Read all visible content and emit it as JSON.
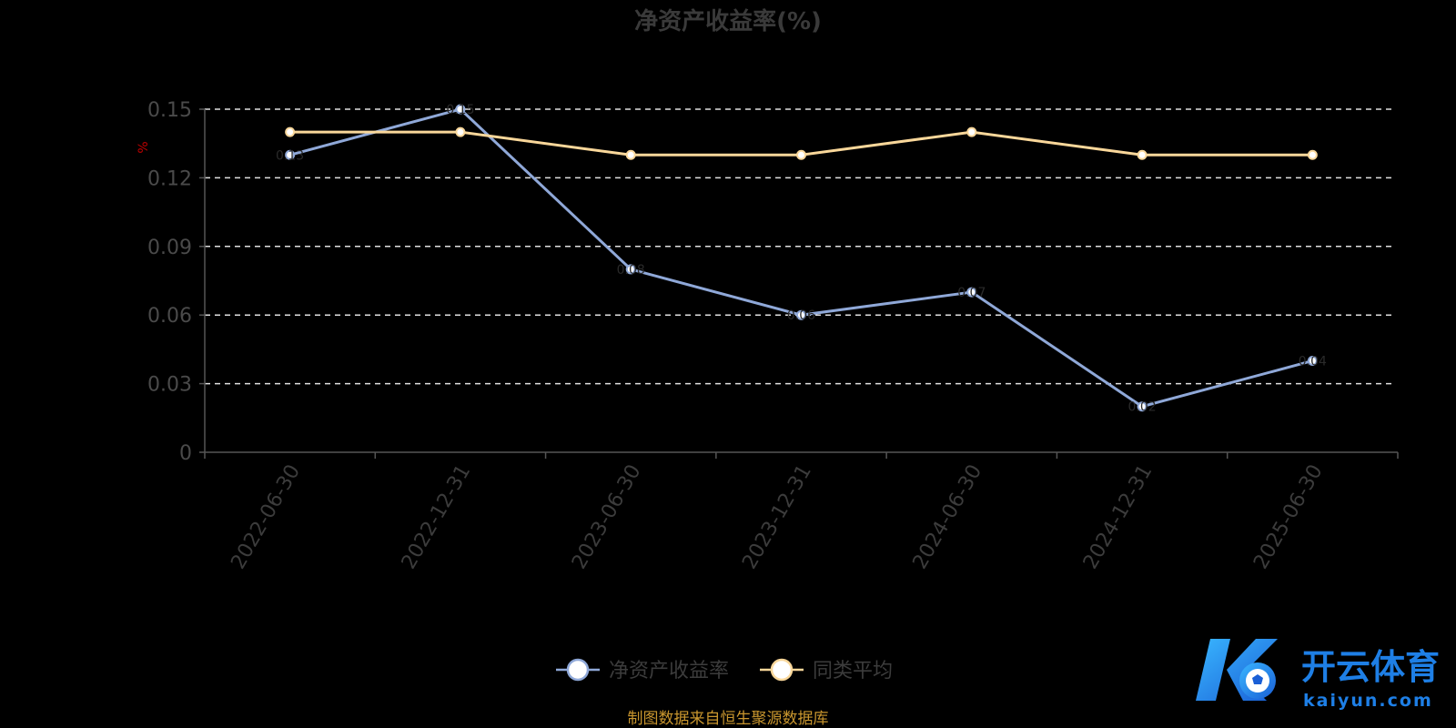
{
  "chart_data": {
    "type": "line",
    "title": "净资产收益率(%)",
    "ylabel": "%",
    "categories": [
      "2022-06-30",
      "2022-12-31",
      "2023-06-30",
      "2023-12-31",
      "2024-06-30",
      "2024-12-31",
      "2025-06-30"
    ],
    "series": [
      {
        "name": "净资产收益率",
        "values": [
          0.13,
          0.15,
          0.08,
          0.06,
          0.07,
          0.02,
          0.04
        ],
        "color": "#8fa8d8"
      },
      {
        "name": "同类平均",
        "values": [
          0.14,
          0.14,
          0.13,
          0.13,
          0.14,
          0.13,
          0.13
        ],
        "color": "#f9d79a"
      }
    ],
    "yticks": [
      "0",
      "0.03",
      "0.06",
      "0.09",
      "0.12",
      "0.15"
    ],
    "ylim": [
      0,
      0.15
    ],
    "grid": true,
    "legend_position": "bottom-center"
  },
  "footer": {
    "source": "制图数据来自恒生聚源数据库"
  },
  "watermark": {
    "brand": "开云体育",
    "domain": "kaiyun.com"
  }
}
